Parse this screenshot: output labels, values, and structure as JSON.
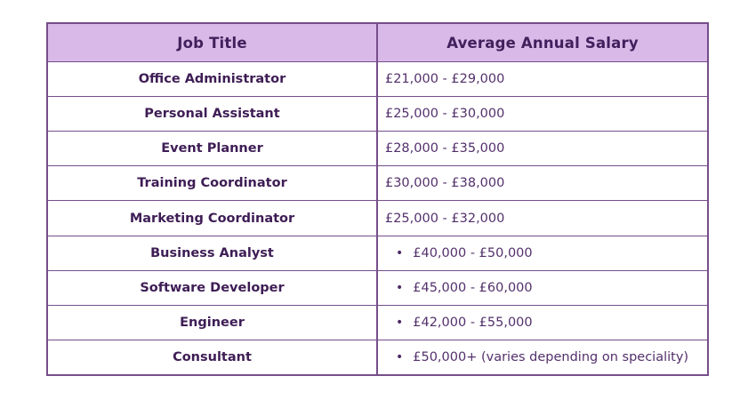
{
  "table": {
    "headers": {
      "job_title": "Job Title",
      "salary": "Average Annual Salary"
    },
    "rows": [
      {
        "job_title": "Office Administrator",
        "salary": "£21,000 - £29,000",
        "bullet": false
      },
      {
        "job_title": "Personal Assistant",
        "salary": "£25,000 - £30,000",
        "bullet": false
      },
      {
        "job_title": "Event Planner",
        "salary": "£28,000 - £35,000",
        "bullet": false
      },
      {
        "job_title": "Training Coordinator",
        "salary": "£30,000 - £38,000",
        "bullet": false
      },
      {
        "job_title": "Marketing Coordinator",
        "salary": "£25,000 - £32,000",
        "bullet": false
      },
      {
        "job_title": "Business Analyst",
        "salary": "£40,000 - £50,000",
        "bullet": true
      },
      {
        "job_title": "Software Developer",
        "salary": "£45,000 - £60,000",
        "bullet": true
      },
      {
        "job_title": "Engineer",
        "salary": "£42,000 - £55,000",
        "bullet": true
      },
      {
        "job_title": "Consultant",
        "salary": "£50,000+ (varies depending on speciality)",
        "bullet": true
      }
    ],
    "icons": {
      "bullet": "•"
    },
    "colors": {
      "header_bg": "#d9b9e8",
      "border": "#764e8a",
      "header_text": "#41205c",
      "job_title_text": "#3e1d55",
      "salary_text": "#53306b",
      "page_bg": "#ffffff"
    }
  }
}
